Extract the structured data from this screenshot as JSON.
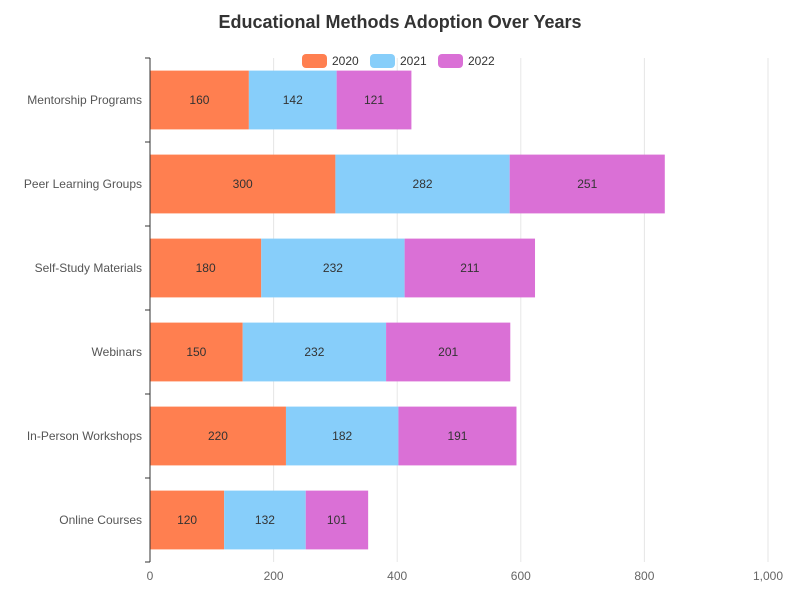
{
  "chart_data": {
    "type": "bar",
    "orientation": "horizontal",
    "stacked": true,
    "title": "Educational Methods Adoption Over Years",
    "categories": [
      "Mentorship Programs",
      "Peer Learning Groups",
      "Self-Study Materials",
      "Webinars",
      "In-Person Workshops",
      "Online Courses"
    ],
    "series": [
      {
        "name": "2020",
        "color": "#FF7F50",
        "values": [
          160,
          300,
          180,
          150,
          220,
          120
        ]
      },
      {
        "name": "2021",
        "color": "#87CEFA",
        "values": [
          142,
          282,
          232,
          232,
          182,
          132
        ]
      },
      {
        "name": "2022",
        "color": "#DA70D6",
        "values": [
          121,
          251,
          211,
          201,
          191,
          101
        ]
      }
    ],
    "xlim": [
      0,
      1000
    ],
    "xticks": [
      0,
      200,
      400,
      600,
      800,
      1000
    ],
    "xtick_labels": [
      "0",
      "200",
      "400",
      "600",
      "800",
      "1,000"
    ],
    "grid": "vertical",
    "legend_position": "top-center",
    "show_data_labels": true
  }
}
